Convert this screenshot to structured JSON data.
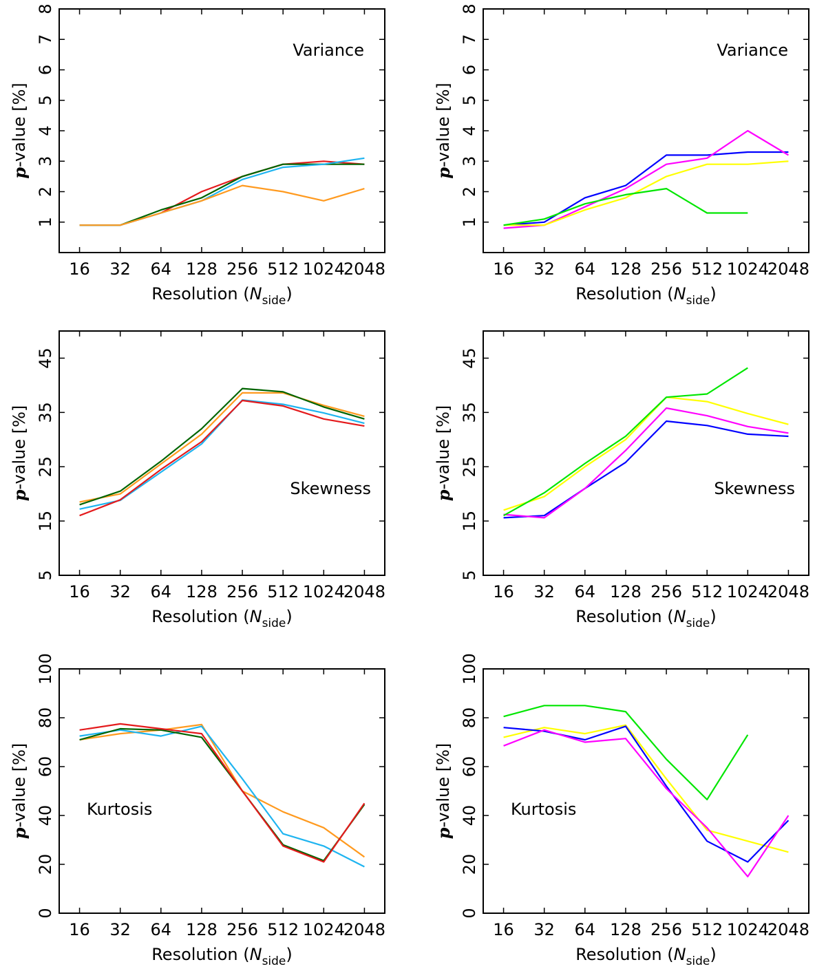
{
  "chart_data": [
    {
      "type": "line",
      "title": "Variance",
      "title_pos": "top-right",
      "xlabel_main": "Resolution (",
      "xlabel_italic": "N",
      "xlabel_sub": "side",
      "xlabel_close": ")",
      "ylabel_italic": "p",
      "ylabel_rest": "-value [%]",
      "categories": [
        "16",
        "32",
        "64",
        "128",
        "256",
        "512",
        "1024",
        "2048"
      ],
      "ylim": [
        0,
        8
      ],
      "yticks": [
        1,
        2,
        3,
        4,
        5,
        6,
        7,
        8
      ],
      "series": [
        {
          "name": "red",
          "color": "#e41a1c",
          "values": [
            0.9,
            0.9,
            1.3,
            2.0,
            2.5,
            2.9,
            3.0,
            2.9
          ]
        },
        {
          "name": "dark-green",
          "color": "#006400",
          "values": [
            0.9,
            0.9,
            1.4,
            1.8,
            2.5,
            2.9,
            2.9,
            2.9
          ]
        },
        {
          "name": "sky-blue",
          "color": "#1eb4f0",
          "values": [
            0.9,
            0.9,
            1.3,
            1.7,
            2.4,
            2.8,
            2.9,
            3.1
          ]
        },
        {
          "name": "orange",
          "color": "#ff9a1f",
          "values": [
            0.9,
            0.9,
            1.3,
            1.7,
            2.2,
            2.0,
            1.7,
            2.1
          ]
        }
      ]
    },
    {
      "type": "line",
      "title": "Variance",
      "title_pos": "top-right",
      "xlabel_main": "Resolution (",
      "xlabel_italic": "N",
      "xlabel_sub": "side",
      "xlabel_close": ")",
      "ylabel_italic": "p",
      "ylabel_rest": "-value [%]",
      "categories": [
        "16",
        "32",
        "64",
        "128",
        "256",
        "512",
        "1024",
        "2048"
      ],
      "ylim": [
        0,
        8
      ],
      "yticks": [
        1,
        2,
        3,
        4,
        5,
        6,
        7,
        8
      ],
      "series": [
        {
          "name": "blue",
          "color": "#0000ff",
          "values": [
            0.9,
            1.0,
            1.8,
            2.2,
            3.2,
            3.2,
            3.3,
            3.3
          ]
        },
        {
          "name": "magenta",
          "color": "#ff00ff",
          "values": [
            0.8,
            0.9,
            1.5,
            2.1,
            2.9,
            3.1,
            4.0,
            3.2
          ]
        },
        {
          "name": "yellow",
          "color": "#ffff00",
          "values": [
            0.9,
            0.9,
            1.4,
            1.8,
            2.5,
            2.9,
            2.9,
            3.0
          ]
        },
        {
          "name": "green",
          "color": "#00e600",
          "values": [
            0.9,
            1.1,
            1.6,
            1.9,
            2.1,
            1.3,
            1.3,
            null
          ]
        }
      ]
    },
    {
      "type": "line",
      "title": "Skewness",
      "title_pos": "middle-right",
      "xlabel_main": "Resolution (",
      "xlabel_italic": "N",
      "xlabel_sub": "side",
      "xlabel_close": ")",
      "ylabel_italic": "p",
      "ylabel_rest": "-value [%]",
      "categories": [
        "16",
        "32",
        "64",
        "128",
        "256",
        "512",
        "1024",
        "2048"
      ],
      "ylim": [
        5,
        50
      ],
      "yticks": [
        5,
        15,
        25,
        35,
        45
      ],
      "series": [
        {
          "name": "orange",
          "color": "#ff9a1f",
          "values": [
            18.5,
            20.0,
            25.5,
            31.0,
            38.6,
            38.6,
            36.3,
            34.3
          ]
        },
        {
          "name": "sky-blue",
          "color": "#1eb4f0",
          "values": [
            17.2,
            18.8,
            24.0,
            29.2,
            37.3,
            36.5,
            34.9,
            33.0
          ]
        },
        {
          "name": "dark-green",
          "color": "#006400",
          "values": [
            18.0,
            20.5,
            26.0,
            32.0,
            39.4,
            38.8,
            36.0,
            33.8
          ]
        },
        {
          "name": "red",
          "color": "#e41a1c",
          "values": [
            16.0,
            18.9,
            24.5,
            29.6,
            37.2,
            36.2,
            33.8,
            32.5
          ]
        }
      ]
    },
    {
      "type": "line",
      "title": "Skewness",
      "title_pos": "middle-right",
      "xlabel_main": "Resolution (",
      "xlabel_italic": "N",
      "xlabel_sub": "side",
      "xlabel_close": ")",
      "ylabel_italic": "p",
      "ylabel_rest": "-value [%]",
      "categories": [
        "16",
        "32",
        "64",
        "128",
        "256",
        "512",
        "1024",
        "2048"
      ],
      "ylim": [
        5,
        50
      ],
      "yticks": [
        5,
        15,
        25,
        35,
        45
      ],
      "series": [
        {
          "name": "blue",
          "color": "#0000ff",
          "values": [
            15.6,
            16.0,
            21.0,
            25.8,
            33.4,
            32.6,
            31.0,
            30.6
          ]
        },
        {
          "name": "magenta",
          "color": "#ff00ff",
          "values": [
            16.2,
            15.6,
            21.0,
            28.0,
            35.8,
            34.4,
            32.4,
            31.2
          ]
        },
        {
          "name": "yellow",
          "color": "#ffff00",
          "values": [
            17.0,
            19.5,
            25.0,
            30.0,
            37.8,
            37.0,
            34.8,
            32.8
          ]
        },
        {
          "name": "green",
          "color": "#00e600",
          "values": [
            16.0,
            20.2,
            25.6,
            30.6,
            37.8,
            38.4,
            43.2,
            null
          ]
        }
      ]
    },
    {
      "type": "line",
      "title": "Kurtosis",
      "title_pos": "lower-left",
      "xlabel_main": "Resolution (",
      "xlabel_italic": "N",
      "xlabel_sub": "side",
      "xlabel_close": ")",
      "ylabel_italic": "p",
      "ylabel_rest": "-value [%]",
      "categories": [
        "16",
        "32",
        "64",
        "128",
        "256",
        "512",
        "1024",
        "2048"
      ],
      "ylim": [
        0,
        100
      ],
      "yticks": [
        0,
        20,
        40,
        60,
        80,
        100
      ],
      "series": [
        {
          "name": "orange",
          "color": "#ff9a1f",
          "values": [
            71,
            73.5,
            75,
            77.2,
            50,
            41.5,
            35,
            23
          ]
        },
        {
          "name": "sky-blue",
          "color": "#1eb4f0",
          "values": [
            72.5,
            75,
            72.5,
            76.5,
            55,
            32.5,
            27.5,
            19
          ]
        },
        {
          "name": "dark-green",
          "color": "#006400",
          "values": [
            71,
            75.5,
            75,
            72,
            50,
            28,
            21.5,
            44.5
          ]
        },
        {
          "name": "red",
          "color": "#e41a1c",
          "values": [
            75,
            77.5,
            75.5,
            73.5,
            50,
            27.5,
            21,
            45
          ]
        }
      ]
    },
    {
      "type": "line",
      "title": "Kurtosis",
      "title_pos": "lower-left",
      "xlabel_main": "Resolution (",
      "xlabel_italic": "N",
      "xlabel_sub": "side",
      "xlabel_close": ")",
      "ylabel_italic": "p",
      "ylabel_rest": "-value [%]",
      "categories": [
        "16",
        "32",
        "64",
        "128",
        "256",
        "512",
        "1024",
        "2048"
      ],
      "ylim": [
        0,
        100
      ],
      "yticks": [
        0,
        20,
        40,
        60,
        80,
        100
      ],
      "series": [
        {
          "name": "green",
          "color": "#00e600",
          "values": [
            80.5,
            85,
            85,
            82.5,
            63,
            46.5,
            73,
            null
          ]
        },
        {
          "name": "yellow",
          "color": "#ffff00",
          "values": [
            72,
            76,
            73.5,
            77,
            55,
            34,
            29.5,
            25
          ]
        },
        {
          "name": "blue",
          "color": "#0000ff",
          "values": [
            76,
            74.5,
            71,
            76.5,
            52,
            29.5,
            21,
            38
          ]
        },
        {
          "name": "magenta",
          "color": "#ff00ff",
          "values": [
            68.5,
            75,
            70,
            71.5,
            51,
            35,
            15,
            40
          ]
        }
      ]
    }
  ]
}
